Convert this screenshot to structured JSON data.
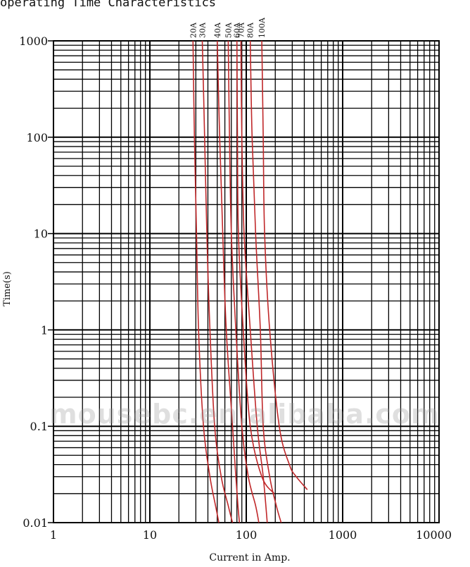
{
  "chart_data": {
    "type": "line",
    "title": "operating Time Characteristics",
    "xlabel": "Current in Amp.",
    "ylabel": "Time(s)",
    "xscale": "log",
    "yscale": "log",
    "xlim": [
      1,
      10000
    ],
    "ylim": [
      0.01,
      1000
    ],
    "grid": true,
    "x_tick_labels": [
      "1",
      "10",
      "100",
      "1000",
      "10000"
    ],
    "y_tick_labels": [
      "0.01",
      "0.1",
      "1",
      "10",
      "100",
      "1000"
    ],
    "line_color": "#c0282a",
    "series": [
      {
        "name": "20A",
        "points": [
          [
            28,
            1000
          ],
          [
            29,
            100
          ],
          [
            30.5,
            10
          ],
          [
            32,
            1
          ],
          [
            36,
            0.1
          ],
          [
            42,
            0.03
          ],
          [
            48,
            0.015
          ],
          [
            52,
            0.01
          ]
        ]
      },
      {
        "name": "30A",
        "points": [
          [
            35,
            1000
          ],
          [
            37,
            100
          ],
          [
            39,
            10
          ],
          [
            42,
            1
          ],
          [
            47,
            0.1
          ],
          [
            55,
            0.03
          ],
          [
            65,
            0.015
          ],
          [
            72,
            0.01
          ]
        ]
      },
      {
        "name": "40A",
        "points": [
          [
            50,
            1000
          ],
          [
            53,
            100
          ],
          [
            57,
            10
          ],
          [
            62,
            1
          ],
          [
            72,
            0.1
          ],
          [
            78,
            0.03
          ],
          [
            82,
            0.015
          ],
          [
            85,
            0.01
          ]
        ]
      },
      {
        "name": "50A",
        "points": [
          [
            65,
            1000
          ],
          [
            67,
            100
          ],
          [
            70,
            10
          ],
          [
            78,
            1
          ],
          [
            90,
            0.1
          ],
          [
            105,
            0.03
          ],
          [
            125,
            0.015
          ],
          [
            135,
            0.01
          ]
        ]
      },
      {
        "name": "60A",
        "points": [
          [
            80,
            1000
          ],
          [
            81,
            100
          ],
          [
            83,
            10
          ],
          [
            93,
            1
          ],
          [
            110,
            0.1
          ],
          [
            145,
            0.03
          ],
          [
            195,
            0.02
          ]
        ]
      },
      {
        "name": "70A",
        "points": [
          [
            88,
            1000
          ],
          [
            90,
            100
          ],
          [
            95,
            10
          ],
          [
            110,
            1
          ],
          [
            130,
            0.1
          ],
          [
            150,
            0.03
          ],
          [
            165,
            0.01
          ]
        ]
      },
      {
        "name": "80A",
        "points": [
          [
            110,
            1000
          ],
          [
            115,
            100
          ],
          [
            125,
            10
          ],
          [
            140,
            1
          ],
          [
            150,
            0.1
          ],
          [
            175,
            0.03
          ],
          [
            205,
            0.015
          ],
          [
            230,
            0.01
          ]
        ]
      },
      {
        "name": "100A",
        "points": [
          [
            145,
            1000
          ],
          [
            150,
            100
          ],
          [
            155,
            10
          ],
          [
            175,
            1
          ],
          [
            220,
            0.1
          ],
          [
            280,
            0.04
          ],
          [
            330,
            0.03
          ],
          [
            430,
            0.022
          ]
        ]
      }
    ]
  },
  "watermark": "mousebc.en.alibaba.com"
}
